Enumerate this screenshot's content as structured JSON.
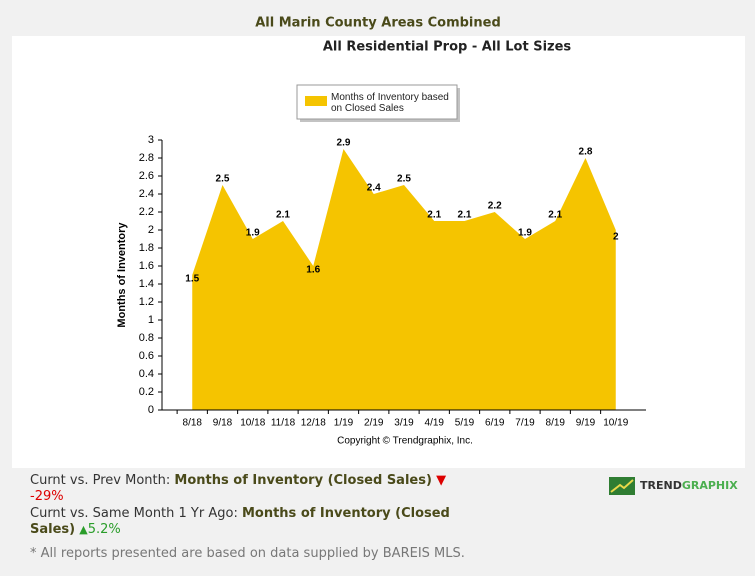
{
  "header_title": "All Marin County Areas Combined",
  "chart_data": {
    "type": "area",
    "title": "All Residential Prop - All Lot Sizes",
    "y_label": "Months of Inventory",
    "credit": "Copyright © Trendgraphix, Inc.",
    "categories": [
      "8/18",
      "9/18",
      "10/18",
      "11/18",
      "12/18",
      "1/19",
      "2/19",
      "3/19",
      "4/19",
      "5/19",
      "6/19",
      "7/19",
      "8/19",
      "9/19",
      "10/19"
    ],
    "series": [
      {
        "name": "Months of Inventory based on Closed Sales",
        "color": "#f5c400",
        "values": [
          1.5,
          2.5,
          1.9,
          2.1,
          1.6,
          2.9,
          2.4,
          2.5,
          2.1,
          2.1,
          2.2,
          1.9,
          2.1,
          2.8,
          2
        ]
      }
    ],
    "ylim": [
      0,
      3
    ],
    "yticks": [
      0,
      0.2,
      0.4,
      0.6,
      0.8,
      1,
      1.2,
      1.4,
      1.6,
      1.8,
      2,
      2.2,
      2.4,
      2.6,
      2.8,
      3
    ],
    "grid": false,
    "legend": "top"
  },
  "comparisons": [
    {
      "label": "Curnt vs. Prev Month:",
      "metric": "Months of Inventory (Closed Sales)",
      "change": "-29%"
    },
    {
      "label": "Curnt vs. Same Month 1 Yr Ago:",
      "metric": "Months of Inventory (Closed Sales)",
      "change": "5.2%"
    }
  ],
  "footnote": "* All reports presented are based on data supplied by BAREIS MLS.",
  "brand": {
    "part1": "TREND",
    "part2": "GRAPHIX"
  }
}
